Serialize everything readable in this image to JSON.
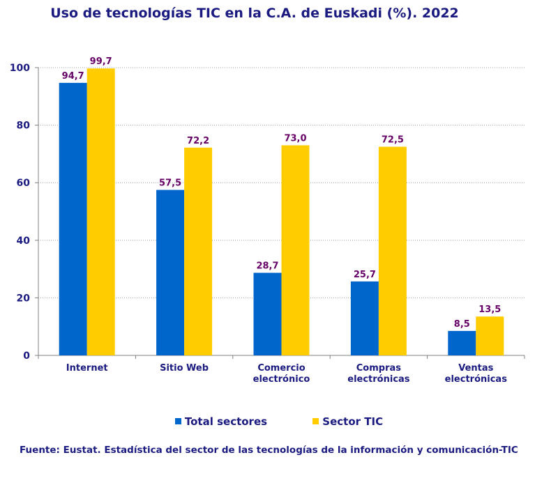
{
  "chart_data": {
    "type": "bar",
    "title": "Uso de tecnologías TIC en la C.A. de Euskadi (%). 2022",
    "categories": [
      [
        "Internet"
      ],
      [
        "Sitio Web"
      ],
      [
        "Comercio",
        "electrónico"
      ],
      [
        "Compras",
        "electrónicas"
      ],
      [
        "Ventas",
        "electrónicas"
      ]
    ],
    "series": [
      {
        "name": "Total sectores",
        "color": "#0066cc",
        "values": [
          94.7,
          57.5,
          28.7,
          25.7,
          8.5
        ],
        "labels": [
          "94,7",
          "57,5",
          "28,7",
          "25,7",
          "8,5"
        ]
      },
      {
        "name": "Sector TIC",
        "color": "#ffcc00",
        "values": [
          99.7,
          72.2,
          73.0,
          72.5,
          13.5
        ],
        "labels": [
          "99,7",
          "72,2",
          "73,0",
          "72,5",
          "13,5"
        ]
      }
    ],
    "ylim": [
      0,
      100
    ],
    "yticks": [
      0,
      20,
      40,
      60,
      80,
      100
    ],
    "grid": true,
    "legend": "bottom",
    "xlabel": "",
    "ylabel": ""
  },
  "source": "Fuente: Eustat. Estadística del sector de las tecnologías de la información y comunicación-TIC",
  "colors": {
    "text": "#1a1a80",
    "data_label": "#660066",
    "grid": "#a0a0a0"
  }
}
